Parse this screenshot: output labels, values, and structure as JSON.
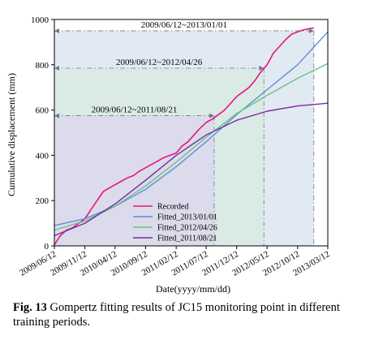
{
  "chart_data": {
    "type": "line",
    "xlabel": "Date(yyyy/mm/dd)",
    "ylabel": "Cumulative displacement (mm)",
    "ylim": [
      0,
      1000
    ],
    "xlim": [
      "2009-06-12",
      "2013-03-12"
    ],
    "x_ticks": [
      "2009/06/12",
      "2009/11/12",
      "2010/04/12",
      "2010/09/12",
      "2011/02/12",
      "2011/07/12",
      "2011/12/12",
      "2012/05/12",
      "2012/10/12",
      "2013/03/12"
    ],
    "y_ticks": [
      0,
      200,
      400,
      600,
      800,
      1000
    ],
    "legend_position": "bottom-center",
    "periods": [
      {
        "label": "2009/06/12~2013/01/01",
        "start": "2009-06-12",
        "end": "2013-01-01",
        "level": 950,
        "color": "#d7e3ee"
      },
      {
        "label": "2009/06/12~2012/04/26",
        "start": "2009-06-12",
        "end": "2012-04-26",
        "level": 785,
        "color": "#d7ebe0"
      },
      {
        "label": "2009/06/12~2011/08/21",
        "start": "2009-06-12",
        "end": "2011-08-21",
        "level": 575,
        "color": "#dbd6ec"
      }
    ],
    "series": [
      {
        "name": "Recorded",
        "color": "#e8157c",
        "points": [
          [
            "2009-06-12",
            5
          ],
          [
            "2009-07-12",
            45
          ],
          [
            "2009-08-12",
            70
          ],
          [
            "2009-09-12",
            80
          ],
          [
            "2009-10-12",
            100
          ],
          [
            "2009-11-12",
            120
          ],
          [
            "2009-12-12",
            160
          ],
          [
            "2010-01-12",
            200
          ],
          [
            "2010-02-12",
            240
          ],
          [
            "2010-03-12",
            255
          ],
          [
            "2010-04-12",
            270
          ],
          [
            "2010-05-12",
            285
          ],
          [
            "2010-06-12",
            300
          ],
          [
            "2010-07-12",
            310
          ],
          [
            "2010-08-12",
            330
          ],
          [
            "2010-09-12",
            345
          ],
          [
            "2010-10-12",
            360
          ],
          [
            "2010-11-12",
            375
          ],
          [
            "2010-12-12",
            390
          ],
          [
            "2011-01-12",
            400
          ],
          [
            "2011-02-12",
            410
          ],
          [
            "2011-03-12",
            440
          ],
          [
            "2011-04-12",
            460
          ],
          [
            "2011-05-12",
            490
          ],
          [
            "2011-06-12",
            520
          ],
          [
            "2011-07-12",
            545
          ],
          [
            "2011-08-12",
            560
          ],
          [
            "2011-09-12",
            580
          ],
          [
            "2011-10-12",
            600
          ],
          [
            "2011-11-12",
            630
          ],
          [
            "2011-12-12",
            660
          ],
          [
            "2012-01-12",
            680
          ],
          [
            "2012-02-12",
            700
          ],
          [
            "2012-03-12",
            730
          ],
          [
            "2012-04-12",
            770
          ],
          [
            "2012-05-12",
            800
          ],
          [
            "2012-06-12",
            850
          ],
          [
            "2012-07-12",
            880
          ],
          [
            "2012-08-12",
            910
          ],
          [
            "2012-09-12",
            935
          ],
          [
            "2012-10-12",
            945
          ],
          [
            "2012-11-12",
            955
          ],
          [
            "2012-12-12",
            960
          ],
          [
            "2013-01-01",
            962
          ]
        ]
      },
      {
        "name": "Fitted_2013/01/01",
        "color": "#5b8fd6",
        "points": [
          [
            "2009-06-12",
            90
          ],
          [
            "2009-11-12",
            120
          ],
          [
            "2010-04-12",
            175
          ],
          [
            "2010-09-12",
            250
          ],
          [
            "2011-02-12",
            350
          ],
          [
            "2011-07-12",
            460
          ],
          [
            "2011-12-12",
            580
          ],
          [
            "2012-05-12",
            690
          ],
          [
            "2012-10-12",
            800
          ],
          [
            "2013-03-12",
            945
          ]
        ]
      },
      {
        "name": "Fitted_2012/04/26",
        "color": "#6fbf85",
        "points": [
          [
            "2009-06-12",
            70
          ],
          [
            "2009-11-12",
            110
          ],
          [
            "2010-04-12",
            175
          ],
          [
            "2010-09-12",
            265
          ],
          [
            "2011-02-12",
            370
          ],
          [
            "2011-07-12",
            480
          ],
          [
            "2011-12-12",
            585
          ],
          [
            "2012-05-12",
            665
          ],
          [
            "2012-10-12",
            740
          ],
          [
            "2013-03-12",
            805
          ]
        ]
      },
      {
        "name": "Fitted_2011/08/21",
        "color": "#7a2aa0",
        "points": [
          [
            "2009-06-12",
            45
          ],
          [
            "2009-11-12",
            100
          ],
          [
            "2010-04-12",
            185
          ],
          [
            "2010-09-12",
            290
          ],
          [
            "2011-02-12",
            400
          ],
          [
            "2011-07-12",
            490
          ],
          [
            "2011-12-12",
            555
          ],
          [
            "2012-05-12",
            595
          ],
          [
            "2012-10-12",
            618
          ],
          [
            "2013-03-12",
            630
          ]
        ]
      }
    ]
  },
  "caption": {
    "fig_label": "Fig. 13",
    "text": " Gompertz fitting results of JC15 monitoring point in different training periods."
  }
}
